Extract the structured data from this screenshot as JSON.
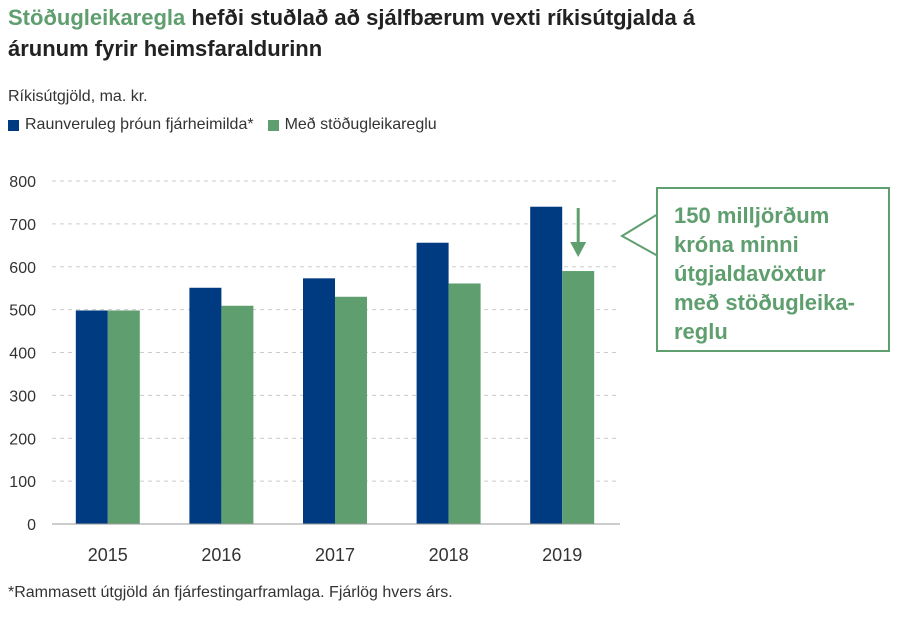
{
  "title": {
    "highlight": "Stöðugleikaregla",
    "rest": " hefði stuðlað að sjálfbærum vexti ríkisútgjalda á árunum fyrir heimsfaraldurinn"
  },
  "subtitle": "Ríkisútgjöld, ma. kr.",
  "legend": [
    {
      "label": "Raunveruleg þróun fjárheimilda*",
      "color": "#003a80"
    },
    {
      "label": "Með stöðugleikareglu",
      "color": "#5f9e6e"
    }
  ],
  "callout": {
    "text": "150 milljörðum króna minni útgjaldavöxtur með stöðugleika-reglu"
  },
  "footnote": "*Rammasett útgjöld án fjárfestingarframlaga. Fjárlög hvers árs.",
  "colors": {
    "navy": "#003a80",
    "green": "#5f9e6e",
    "grid": "#cccccc"
  },
  "chart_data": {
    "type": "bar",
    "categories": [
      "2015",
      "2016",
      "2017",
      "2018",
      "2019"
    ],
    "series": [
      {
        "name": "Raunveruleg þróun fjárheimilda*",
        "values": [
          498,
          551,
          573,
          656,
          740
        ]
      },
      {
        "name": "Með stöðugleikareglu",
        "values": [
          498,
          509,
          530,
          561,
          590
        ]
      }
    ],
    "ylabel": "Ríkisútgjöld, ma. kr.",
    "ylim": [
      0,
      800
    ],
    "yticks": [
      0,
      100,
      200,
      300,
      400,
      500,
      600,
      700,
      800
    ],
    "grid": true,
    "legend_position": "top-left"
  }
}
